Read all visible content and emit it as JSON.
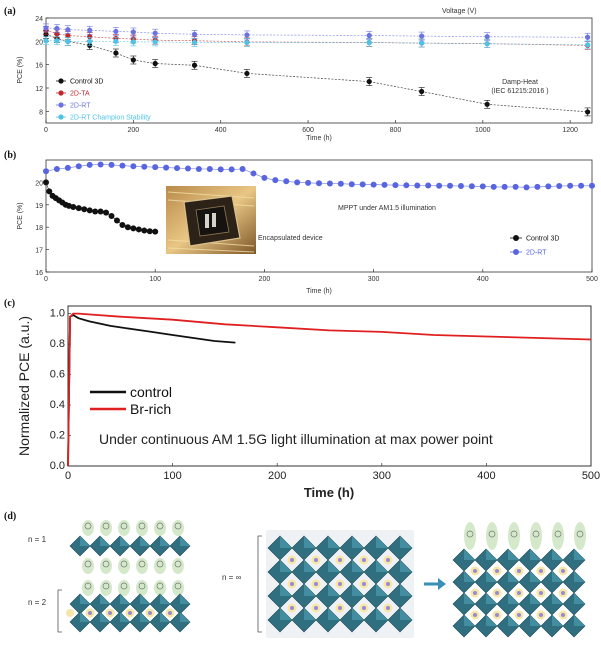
{
  "panels": {
    "a": {
      "label": "(a)",
      "top_axis_label": "Voltage (V)",
      "xlabel": "Time (h)",
      "ylabel": "PCE (%)",
      "annotation_line1": "Damp-Heat",
      "annotation_line2": "(IEC 61215:2016 )"
    },
    "b": {
      "label": "(b)",
      "xlabel": "Time (h)",
      "ylabel": "PCE (%)",
      "annotation_mppt": "MPPT under AM1.5 illumination",
      "annotation_device": "Encapsulated device"
    },
    "c": {
      "label": "(c)",
      "xlabel": "Time (h)",
      "ylabel": "Normalized PCE (a.u.)",
      "annotation": "Under continuous AM 1.5G light illumination at max power point"
    },
    "d": {
      "label": "(d)",
      "n1": "n = 1",
      "n2": "n = 2",
      "ninf": "n = ∞"
    }
  },
  "chart_data": [
    {
      "panel": "a",
      "type": "scatter",
      "xlim": [
        0,
        1250
      ],
      "ylim": [
        6,
        24
      ],
      "xticks": [
        0,
        200,
        400,
        600,
        800,
        1000,
        1200
      ],
      "yticks": [
        8,
        12,
        16,
        20,
        24
      ],
      "legend_position": "left",
      "series": [
        {
          "name": "Control 3D",
          "color": "#111111",
          "x": [
            0,
            25,
            50,
            100,
            160,
            200,
            250,
            340,
            460,
            740,
            860,
            1010,
            1240
          ],
          "y": [
            21.2,
            20.5,
            20.0,
            19.3,
            18.0,
            16.8,
            16.2,
            15.9,
            14.5,
            13.1,
            11.4,
            9.2,
            7.9
          ]
        },
        {
          "name": "2D-TA",
          "color": "#c0282c",
          "x": [
            0,
            25,
            50,
            100,
            160,
            200,
            250,
            340,
            460,
            740,
            860,
            1010,
            1240
          ],
          "y": [
            21.9,
            21.3,
            21.0,
            20.8,
            20.5,
            20.4,
            20.2,
            20.1,
            19.9,
            19.8,
            19.7,
            19.6,
            19.3
          ]
        },
        {
          "name": "2D-RT",
          "color": "#6b73e0",
          "x": [
            0,
            25,
            50,
            100,
            160,
            200,
            250,
            340,
            460,
            740,
            860,
            1010,
            1240
          ],
          "y": [
            22.3,
            22.2,
            22.0,
            21.9,
            21.7,
            21.6,
            21.4,
            21.2,
            21.1,
            21.0,
            20.9,
            20.8,
            20.7
          ]
        },
        {
          "name": "2D-RT Champion Stability",
          "color": "#4fc3e6",
          "x": [
            0,
            25,
            50,
            100,
            160,
            200,
            250,
            340,
            460,
            740,
            860,
            1010,
            1240
          ],
          "y": [
            20.1,
            20.1,
            20.0,
            20.0,
            20.0,
            19.9,
            19.9,
            19.8,
            19.8,
            19.8,
            19.7,
            19.6,
            19.4
          ]
        }
      ]
    },
    {
      "panel": "b",
      "type": "scatter",
      "xlim": [
        0,
        500
      ],
      "ylim": [
        16,
        21
      ],
      "xticks": [
        0,
        100,
        200,
        300,
        400,
        500
      ],
      "yticks": [
        16,
        17,
        18,
        19,
        20
      ],
      "legend_position": "bottom-right",
      "series": [
        {
          "name": "Control 3D",
          "color": "#111111",
          "x": [
            0,
            3,
            6,
            9,
            12,
            15,
            18,
            21,
            25,
            30,
            35,
            40,
            45,
            50,
            55,
            60,
            65,
            70,
            75,
            80,
            85,
            90,
            95,
            100
          ],
          "y": [
            20.0,
            19.6,
            19.4,
            19.3,
            19.2,
            19.1,
            19.0,
            18.95,
            18.9,
            18.85,
            18.8,
            18.75,
            18.7,
            18.7,
            18.65,
            18.5,
            18.3,
            18.1,
            18.0,
            17.95,
            17.9,
            17.85,
            17.82,
            17.8
          ]
        },
        {
          "name": "2D-RT",
          "color": "#5865e0",
          "x": [
            0,
            10,
            20,
            30,
            40,
            50,
            60,
            70,
            80,
            90,
            100,
            110,
            120,
            130,
            140,
            150,
            160,
            170,
            180,
            190,
            200,
            210,
            220,
            230,
            240,
            250,
            260,
            270,
            280,
            290,
            300,
            310,
            320,
            330,
            340,
            350,
            360,
            370,
            380,
            390,
            400,
            410,
            420,
            430,
            440,
            450,
            460,
            470,
            480,
            490,
            500
          ],
          "y": [
            20.5,
            20.6,
            20.65,
            20.72,
            20.78,
            20.8,
            20.78,
            20.75,
            20.72,
            20.7,
            20.68,
            20.66,
            20.64,
            20.62,
            20.6,
            20.6,
            20.58,
            20.58,
            20.6,
            20.4,
            20.2,
            20.1,
            20.05,
            20.0,
            19.98,
            19.96,
            19.95,
            19.94,
            19.92,
            19.91,
            19.9,
            19.89,
            19.88,
            19.87,
            19.86,
            19.86,
            19.85,
            19.85,
            19.84,
            19.83,
            19.82,
            19.8,
            19.8,
            19.8,
            19.78,
            19.8,
            19.82,
            19.84,
            19.85,
            19.85,
            19.85
          ]
        }
      ]
    },
    {
      "panel": "c",
      "type": "line",
      "xlim": [
        0,
        500
      ],
      "ylim": [
        0,
        1.05
      ],
      "xticks": [
        0,
        100,
        200,
        300,
        400,
        500
      ],
      "yticks": [
        0.0,
        0.2,
        0.4,
        0.6,
        0.8,
        1.0
      ],
      "yticklabels": [
        "0.0",
        "0.2",
        "0.4",
        "0.6",
        "0.8",
        "1.0"
      ],
      "legend_position": "lower-left",
      "series": [
        {
          "name": "control",
          "color": "#111111",
          "x": [
            0,
            2,
            5,
            10,
            20,
            40,
            60,
            80,
            100,
            120,
            140,
            160
          ],
          "y": [
            0.0,
            0.98,
            0.99,
            0.97,
            0.95,
            0.92,
            0.9,
            0.88,
            0.86,
            0.84,
            0.82,
            0.81
          ]
        },
        {
          "name": "Br-rich",
          "color": "#e02020",
          "x": [
            0,
            2,
            5,
            10,
            50,
            100,
            150,
            200,
            250,
            300,
            350,
            400,
            450,
            500
          ],
          "y": [
            0.0,
            0.98,
            1.0,
            1.0,
            0.98,
            0.96,
            0.93,
            0.91,
            0.89,
            0.88,
            0.86,
            0.85,
            0.84,
            0.83
          ]
        }
      ]
    }
  ]
}
